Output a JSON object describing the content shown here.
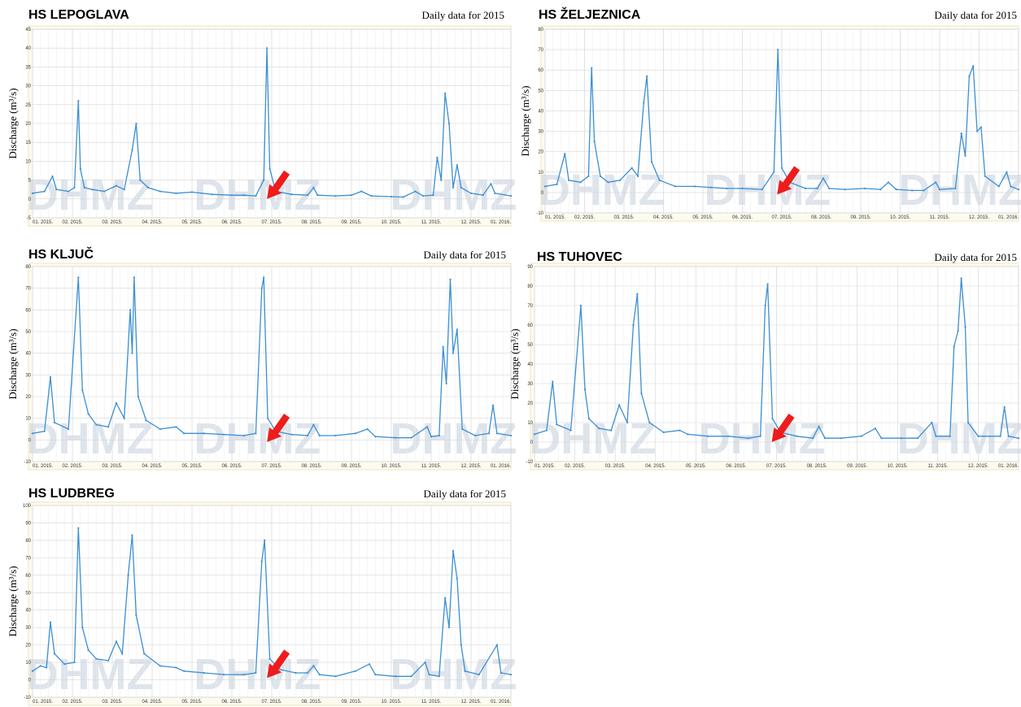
{
  "chart_data": [
    {
      "type": "line",
      "title": "HS LEPOGLAVA",
      "subtitle": "Daily data for 2015",
      "y_label": "Discharge (m³/s)",
      "watermark": "DHMZ",
      "color": "#3b8fd4",
      "grid": true,
      "xlim": [
        0,
        12
      ],
      "ylim": [
        -5,
        45
      ],
      "yticks": [
        -5,
        0,
        5,
        10,
        15,
        20,
        25,
        30,
        35,
        40,
        45
      ],
      "xticks": [
        {
          "value": 0,
          "label": "01. 2015."
        },
        {
          "value": 1,
          "label": "02. 2015."
        },
        {
          "value": 2,
          "label": "03. 2015."
        },
        {
          "value": 3,
          "label": "04. 2015."
        },
        {
          "value": 4,
          "label": "05. 2015."
        },
        {
          "value": 5,
          "label": "06. 2015."
        },
        {
          "value": 6,
          "label": "07. 2015."
        },
        {
          "value": 7,
          "label": "08. 2015."
        },
        {
          "value": 8,
          "label": "09. 2015."
        },
        {
          "value": 9,
          "label": "10. 2015."
        },
        {
          "value": 10,
          "label": "11. 2015."
        },
        {
          "value": 11,
          "label": "12. 2015."
        },
        {
          "value": 12,
          "label": "01. 2016."
        }
      ],
      "x": [
        0,
        0.3,
        0.5,
        0.6,
        0.9,
        1.05,
        1.15,
        1.2,
        1.3,
        1.5,
        1.8,
        2.1,
        2.3,
        2.5,
        2.6,
        2.7,
        2.9,
        3.2,
        3.6,
        4,
        4.5,
        5,
        5.3,
        5.6,
        5.8,
        5.88,
        5.95,
        6.1,
        6.5,
        6.9,
        7.05,
        7.15,
        7.6,
        8,
        8.25,
        8.5,
        9,
        9.3,
        9.6,
        9.8,
        10.05,
        10.15,
        10.25,
        10.35,
        10.45,
        10.55,
        10.65,
        10.75,
        11,
        11.3,
        11.5,
        11.6,
        12
      ],
      "values": [
        1.5,
        2,
        6,
        2.5,
        2,
        3,
        26,
        8,
        3,
        2.5,
        2,
        3.5,
        2.5,
        13,
        20,
        5,
        3,
        2,
        1.5,
        1.8,
        1.2,
        1,
        1,
        0.8,
        5,
        40,
        8,
        2,
        1.2,
        1,
        3,
        1,
        0.8,
        1,
        2,
        0.8,
        0.6,
        0.5,
        2,
        0.8,
        1,
        11,
        5,
        28,
        20,
        3,
        9,
        3,
        1.5,
        1,
        4,
        1.5,
        0.8
      ]
    },
    {
      "type": "line",
      "title": "HS ŽELJEZNICA",
      "subtitle": "Daily data for 2015",
      "y_label": "Discharge (m³/s)",
      "watermark": "DHMZ",
      "color": "#3b8fd4",
      "grid": true,
      "xlim": [
        0,
        12
      ],
      "ylim": [
        -10,
        80
      ],
      "yticks": [
        -10,
        0,
        10,
        20,
        30,
        40,
        50,
        60,
        70,
        80
      ],
      "xticks": [
        {
          "value": 0,
          "label": "01. 2015."
        },
        {
          "value": 1,
          "label": "02. 2015."
        },
        {
          "value": 2,
          "label": "03. 2015."
        },
        {
          "value": 3,
          "label": "04. 2015."
        },
        {
          "value": 4,
          "label": "05. 2015."
        },
        {
          "value": 5,
          "label": "06. 2015."
        },
        {
          "value": 6,
          "label": "07. 2015."
        },
        {
          "value": 7,
          "label": "08. 2015."
        },
        {
          "value": 8,
          "label": "09. 2015."
        },
        {
          "value": 9,
          "label": "10. 2015."
        },
        {
          "value": 10,
          "label": "11. 2015."
        },
        {
          "value": 11,
          "label": "12. 2015."
        },
        {
          "value": 12,
          "label": "01. 2016."
        }
      ],
      "x": [
        0,
        0.3,
        0.5,
        0.6,
        0.9,
        1.1,
        1.18,
        1.25,
        1.4,
        1.6,
        1.9,
        2.2,
        2.35,
        2.5,
        2.58,
        2.7,
        2.9,
        3.3,
        3.8,
        4.2,
        4.6,
        5,
        5.5,
        5.8,
        5.9,
        6,
        6.2,
        6.6,
        6.9,
        7.05,
        7.2,
        7.6,
        8.1,
        8.5,
        8.7,
        8.9,
        9.3,
        9.6,
        9.9,
        10,
        10.4,
        10.55,
        10.65,
        10.75,
        10.85,
        10.95,
        11.05,
        11.15,
        11.5,
        11.7,
        11.8,
        12
      ],
      "values": [
        3,
        4,
        19,
        6,
        5,
        8,
        61,
        25,
        8,
        5,
        6,
        12,
        8,
        44,
        57,
        15,
        6,
        3,
        3,
        2.5,
        2,
        2,
        1.5,
        10,
        70,
        12,
        5,
        2,
        2,
        7,
        2,
        1.5,
        2,
        1.5,
        5,
        1.5,
        1,
        1,
        5,
        1.5,
        2,
        29,
        18,
        57,
        62,
        30,
        32,
        8,
        3,
        10,
        3,
        1.5
      ]
    },
    {
      "type": "line",
      "title": "HS KLJUČ",
      "subtitle": "Daily data for 2015",
      "y_label": "Discharge (m³/s)",
      "watermark": "DHMZ",
      "color": "#3b8fd4",
      "grid": true,
      "xlim": [
        0,
        12
      ],
      "ylim": [
        -10,
        80
      ],
      "yticks": [
        -10,
        0,
        10,
        20,
        30,
        40,
        50,
        60,
        70,
        80
      ],
      "xticks": [
        {
          "value": 0,
          "label": "01. 2015."
        },
        {
          "value": 1,
          "label": "02. 2015."
        },
        {
          "value": 2,
          "label": "03. 2015."
        },
        {
          "value": 3,
          "label": "04. 2015."
        },
        {
          "value": 4,
          "label": "05. 2015."
        },
        {
          "value": 5,
          "label": "06. 2015."
        },
        {
          "value": 6,
          "label": "07. 2015."
        },
        {
          "value": 7,
          "label": "08. 2015."
        },
        {
          "value": 8,
          "label": "09. 2015."
        },
        {
          "value": 9,
          "label": "10. 2015."
        },
        {
          "value": 10,
          "label": "11. 2015."
        },
        {
          "value": 11,
          "label": "12. 2015."
        },
        {
          "value": 12,
          "label": "01. 2016."
        }
      ],
      "x": [
        0,
        0.3,
        0.45,
        0.55,
        0.9,
        1.15,
        1.25,
        1.4,
        1.6,
        1.9,
        2.1,
        2.3,
        2.45,
        2.5,
        2.55,
        2.65,
        2.85,
        3.2,
        3.6,
        3.8,
        4.3,
        4.8,
        5.3,
        5.6,
        5.75,
        5.8,
        5.9,
        6.1,
        6.5,
        6.9,
        7.05,
        7.2,
        7.6,
        8.1,
        8.4,
        8.6,
        9.1,
        9.5,
        9.9,
        10,
        10.2,
        10.3,
        10.38,
        10.48,
        10.55,
        10.65,
        10.78,
        11.1,
        11.45,
        11.55,
        11.65,
        12
      ],
      "values": [
        3,
        4,
        29,
        8,
        5,
        75,
        23,
        12,
        7,
        6,
        17,
        10,
        60,
        40,
        75,
        20,
        9,
        5,
        6,
        3,
        3,
        2.5,
        2,
        3,
        70,
        75,
        10,
        4,
        2.5,
        2,
        7,
        2,
        2,
        3,
        5,
        1.5,
        1,
        1,
        6,
        1.5,
        2,
        43,
        26,
        74,
        40,
        51,
        5,
        2,
        3,
        16,
        3,
        2
      ]
    },
    {
      "type": "line",
      "title": "HS TUHOVEC",
      "subtitle": "Daily data for 2015",
      "y_label": "Discharge (m³/s)",
      "watermark": "DHMZ",
      "color": "#3b8fd4",
      "grid": true,
      "xlim": [
        0,
        12
      ],
      "ylim": [
        -10,
        90
      ],
      "yticks": [
        -10,
        0,
        10,
        20,
        30,
        40,
        50,
        60,
        70,
        80,
        90
      ],
      "xticks": [
        {
          "value": 0,
          "label": "01. 2015."
        },
        {
          "value": 1,
          "label": "02. 2015."
        },
        {
          "value": 2,
          "label": "03. 2015."
        },
        {
          "value": 3,
          "label": "04. 2015."
        },
        {
          "value": 4,
          "label": "05. 2015."
        },
        {
          "value": 5,
          "label": "06. 2015."
        },
        {
          "value": 6,
          "label": "07. 2015."
        },
        {
          "value": 7,
          "label": "08. 2015."
        },
        {
          "value": 8,
          "label": "09. 2015."
        },
        {
          "value": 9,
          "label": "10. 2015."
        },
        {
          "value": 10,
          "label": "11. 2015."
        },
        {
          "value": 11,
          "label": "12. 2015."
        },
        {
          "value": 12,
          "label": "01. 2016."
        }
      ],
      "x": [
        0,
        0.3,
        0.45,
        0.55,
        0.9,
        1.15,
        1.25,
        1.35,
        1.6,
        1.9,
        2.1,
        2.3,
        2.45,
        2.55,
        2.65,
        2.85,
        3.2,
        3.6,
        3.8,
        4.3,
        4.8,
        5.3,
        5.6,
        5.72,
        5.78,
        5.9,
        6.1,
        6.5,
        6.9,
        7.05,
        7.2,
        7.6,
        8.1,
        8.45,
        8.6,
        9.1,
        9.5,
        9.85,
        9.95,
        10.3,
        10.4,
        10.5,
        10.58,
        10.68,
        10.75,
        11,
        11.55,
        11.65,
        11.75,
        12
      ],
      "values": [
        4,
        6,
        31,
        9,
        6,
        70,
        27,
        12,
        7,
        6,
        19,
        10,
        60,
        76,
        25,
        10,
        5,
        6,
        4,
        3,
        3,
        2,
        3,
        70,
        81,
        12,
        5,
        3,
        2,
        8,
        2,
        2,
        3,
        7,
        2,
        2,
        2,
        10,
        3,
        3,
        49,
        57,
        84,
        59,
        10,
        3,
        3,
        18,
        3,
        2
      ]
    },
    {
      "type": "line",
      "title": "HS LUDBREG",
      "subtitle": "Daily data for 2015",
      "y_label": "Discharge (m³/s)",
      "watermark": "DHMZ",
      "color": "#3b8fd4",
      "grid": true,
      "xlim": [
        0,
        12
      ],
      "ylim": [
        -10,
        100
      ],
      "yticks": [
        -10,
        0,
        10,
        20,
        30,
        40,
        50,
        60,
        70,
        80,
        90,
        100
      ],
      "xticks": [
        {
          "value": 0,
          "label": "01. 2015."
        },
        {
          "value": 1,
          "label": "02. 2015."
        },
        {
          "value": 2,
          "label": "03. 2015."
        },
        {
          "value": 3,
          "label": "04. 2015."
        },
        {
          "value": 4,
          "label": "05. 2015."
        },
        {
          "value": 5,
          "label": "06. 2015."
        },
        {
          "value": 6,
          "label": "07. 2015."
        },
        {
          "value": 7,
          "label": "08. 2015."
        },
        {
          "value": 8,
          "label": "09. 2015."
        },
        {
          "value": 9,
          "label": "10. 2015."
        },
        {
          "value": 10,
          "label": "11. 2015."
        },
        {
          "value": 11,
          "label": "12. 2015."
        },
        {
          "value": 12,
          "label": "01. 2016."
        }
      ],
      "x": [
        0,
        0.2,
        0.35,
        0.45,
        0.55,
        0.8,
        1.05,
        1.15,
        1.25,
        1.4,
        1.6,
        1.9,
        2.1,
        2.25,
        2.4,
        2.5,
        2.6,
        2.8,
        3.2,
        3.6,
        3.8,
        4.3,
        4.8,
        5.3,
        5.6,
        5.75,
        5.82,
        5.95,
        6.2,
        6.6,
        6.9,
        7.05,
        7.2,
        7.6,
        8.1,
        8.45,
        8.6,
        9.1,
        9.5,
        9.85,
        9.95,
        10.2,
        10.35,
        10.45,
        10.55,
        10.65,
        10.75,
        10.85,
        11.2,
        11.65,
        11.75,
        12
      ],
      "values": [
        5,
        8,
        7,
        33,
        15,
        9,
        10,
        87,
        30,
        17,
        12,
        11,
        22,
        15,
        60,
        83,
        37,
        15,
        8,
        7,
        5,
        4,
        3,
        3,
        4,
        68,
        80,
        12,
        6,
        4,
        4,
        8,
        3,
        2,
        5,
        9,
        3,
        2,
        2,
        10,
        3,
        2,
        47,
        30,
        74,
        58,
        20,
        5,
        3,
        20,
        4,
        3
      ]
    }
  ]
}
